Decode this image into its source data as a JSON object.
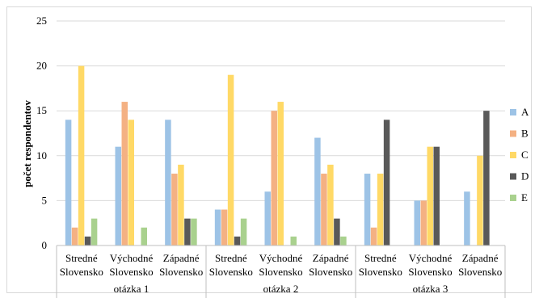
{
  "chart_data": {
    "type": "bar",
    "ylabel": "počet respondentov",
    "ylim": [
      0,
      25
    ],
    "yticks": [
      0,
      5,
      10,
      15,
      20,
      25
    ],
    "groups": [
      {
        "label": "otázka 1",
        "categories": [
          "Stredné Slovensko",
          "Východné Slovensko",
          "Západné Slovensko"
        ]
      },
      {
        "label": "otázka 2",
        "categories": [
          "Stredné Slovensko",
          "Východné Slovensko",
          "Západné Slovensko"
        ]
      },
      {
        "label": "otázka 3",
        "categories": [
          "Stredné Slovensko",
          "Východné Slovensko",
          "Západné Slovensko"
        ]
      }
    ],
    "category_lines": [
      [
        "Stredné",
        "Slovensko"
      ],
      [
        "Východné",
        "Slovensko"
      ],
      [
        "Západné",
        "Slovensko"
      ]
    ],
    "series": [
      {
        "name": "A",
        "color": "#9dc3e6",
        "values": [
          14,
          11,
          14,
          4,
          6,
          12,
          8,
          5,
          6
        ]
      },
      {
        "name": "B",
        "color": "#f4b183",
        "values": [
          2,
          16,
          8,
          4,
          15,
          8,
          2,
          5,
          0
        ]
      },
      {
        "name": "C",
        "color": "#ffd966",
        "values": [
          20,
          14,
          9,
          19,
          16,
          9,
          8,
          11,
          10
        ]
      },
      {
        "name": "D",
        "color": "#595959",
        "values": [
          1,
          0,
          3,
          1,
          0,
          3,
          14,
          11,
          15
        ]
      },
      {
        "name": "E",
        "color": "#a9d18e",
        "values": [
          3,
          2,
          3,
          3,
          1,
          1,
          0,
          0,
          0
        ]
      }
    ],
    "grid": true,
    "legend": "right"
  }
}
